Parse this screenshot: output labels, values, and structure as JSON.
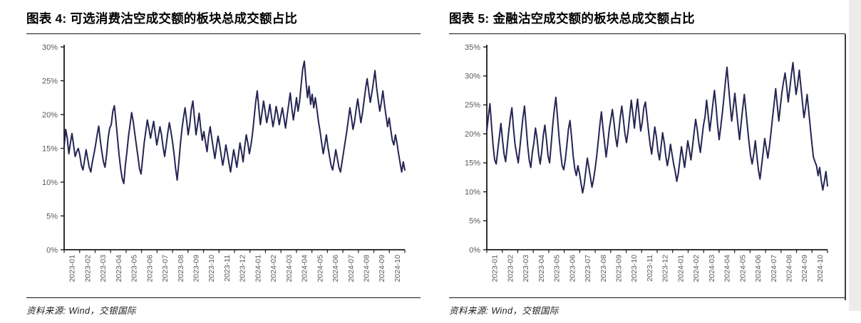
{
  "page": {
    "background": "#ffffff",
    "right_border_color": "#3d3d3d",
    "edge_strip_color": "#ececec"
  },
  "charts": [
    {
      "title": "图表 4: 可选消费沽空成交额的板块总成交额占比",
      "source": "资料来源: Wind，交银国际",
      "chart_data": {
        "type": "line",
        "title": "可选消费沽空成交额的板块总成交额占比",
        "xlabel": "",
        "ylabel": "",
        "grid": false,
        "legend": "none",
        "ylim": [
          0,
          30
        ],
        "y_tick_labels": [
          "0%",
          "5%",
          "10%",
          "15%",
          "20%",
          "25%",
          "30%"
        ],
        "x_labels": [
          "2023-01",
          "2023-02",
          "2023-03",
          "2023-04",
          "2023-05",
          "2023-06",
          "2023-07",
          "2023-08",
          "2023-09",
          "2023-10",
          "2023-11",
          "2023-12",
          "2024-01",
          "2024-02",
          "2024-03",
          "2024-04",
          "2024-05",
          "2024-06",
          "2024-07",
          "2024-08",
          "2024-09",
          "2024-10"
        ],
        "line_color": "#262554",
        "axis_color": "#1a1a1a",
        "tick_label_color": "#595959",
        "values": [
          15.2,
          17.8,
          16.5,
          14.2,
          15.8,
          17.2,
          15.5,
          13.8,
          14.5,
          15.0,
          14.0,
          12.5,
          11.8,
          13.2,
          14.8,
          13.5,
          12.2,
          11.5,
          13.0,
          14.2,
          15.5,
          17.0,
          18.3,
          16.2,
          14.5,
          13.0,
          12.2,
          14.0,
          16.5,
          18.0,
          18.5,
          20.5,
          21.3,
          19.0,
          16.5,
          14.0,
          12.0,
          10.5,
          9.8,
          12.5,
          14.5,
          16.8,
          18.5,
          20.3,
          19.0,
          17.2,
          15.5,
          13.8,
          12.0,
          11.2,
          13.5,
          15.8,
          17.5,
          19.2,
          18.0,
          16.5,
          17.8,
          19.0,
          17.2,
          15.5,
          16.8,
          18.2,
          17.0,
          15.2,
          13.8,
          15.5,
          17.3,
          18.8,
          17.5,
          16.0,
          14.2,
          12.0,
          10.3,
          12.8,
          15.5,
          17.8,
          19.5,
          21.0,
          19.2,
          17.0,
          18.5,
          20.8,
          22.0,
          19.5,
          17.0,
          18.5,
          20.2,
          18.0,
          16.2,
          17.5,
          16.0,
          14.5,
          16.8,
          18.2,
          16.5,
          15.0,
          13.5,
          15.2,
          16.8,
          15.5,
          14.0,
          12.5,
          13.8,
          15.5,
          14.2,
          12.8,
          11.5,
          13.2,
          14.8,
          13.5,
          12.2,
          14.0,
          15.8,
          14.5,
          13.0,
          15.2,
          17.0,
          15.8,
          14.2,
          15.5,
          17.2,
          19.5,
          21.8,
          23.5,
          21.0,
          18.5,
          20.2,
          22.0,
          20.5,
          18.8,
          20.0,
          21.5,
          19.8,
          18.2,
          19.5,
          21.2,
          20.0,
          18.5,
          19.8,
          21.0,
          19.5,
          18.0,
          19.8,
          21.5,
          23.2,
          21.0,
          19.2,
          20.8,
          22.5,
          20.5,
          22.0,
          24.5,
          26.8,
          27.9,
          25.0,
          22.5,
          24.2,
          21.5,
          23.0,
          21.0,
          22.5,
          20.8,
          19.0,
          17.5,
          15.8,
          14.2,
          15.5,
          17.0,
          15.2,
          13.8,
          12.5,
          11.8,
          13.2,
          14.8,
          13.5,
          12.2,
          11.5,
          13.0,
          14.5,
          16.0,
          17.5,
          19.2,
          21.0,
          19.5,
          17.8,
          19.0,
          20.8,
          22.3,
          20.5,
          18.8,
          20.2,
          22.0,
          23.8,
          25.3,
          23.5,
          21.8,
          23.2,
          24.8,
          26.5,
          24.0,
          22.2,
          20.5,
          21.8,
          23.5,
          21.5,
          19.8,
          18.2,
          19.5,
          17.8,
          16.2,
          15.5,
          17.0,
          15.8,
          14.2,
          12.8,
          11.5,
          13.0,
          11.8
        ]
      }
    },
    {
      "title": "图表 5: 金融沽空成交额的板块总成交额占比",
      "source": "资料来源: Wind，交银国际",
      "chart_data": {
        "type": "line",
        "title": "金融沽空成交额的板块总成交额占比",
        "xlabel": "",
        "ylabel": "",
        "grid": false,
        "legend": "none",
        "ylim": [
          0,
          35
        ],
        "y_tick_labels": [
          "0%",
          "5%",
          "10%",
          "15%",
          "20%",
          "25%",
          "30%",
          "35%"
        ],
        "x_labels": [
          "2023-01",
          "2023-02",
          "2023-03",
          "2023-04",
          "2023-05",
          "2023-06",
          "2023-07",
          "2023-08",
          "2023-09",
          "2023-10",
          "2023-11",
          "2023-12",
          "2024-01",
          "2024-02",
          "2024-03",
          "2024-04",
          "2024-05",
          "2024-06",
          "2024-07",
          "2024-08",
          "2024-09",
          "2024-10"
        ],
        "line_color": "#262554",
        "axis_color": "#1a1a1a",
        "tick_label_color": "#595959",
        "values": [
          20.5,
          23.0,
          25.2,
          21.5,
          18.0,
          15.5,
          14.8,
          17.2,
          19.5,
          21.8,
          19.0,
          16.5,
          15.2,
          17.8,
          20.5,
          22.8,
          24.5,
          21.0,
          18.2,
          16.5,
          15.0,
          17.5,
          20.2,
          22.8,
          24.8,
          21.5,
          18.0,
          15.5,
          14.2,
          16.8,
          18.5,
          21.0,
          19.2,
          16.5,
          14.8,
          17.0,
          19.8,
          21.5,
          19.0,
          16.2,
          15.0,
          18.2,
          21.5,
          24.2,
          26.3,
          23.0,
          19.5,
          16.8,
          14.5,
          13.8,
          15.5,
          18.0,
          20.8,
          22.3,
          19.5,
          16.2,
          14.0,
          12.8,
          14.5,
          13.2,
          11.5,
          9.8,
          11.2,
          13.5,
          15.8,
          14.2,
          12.5,
          10.8,
          12.2,
          14.0,
          16.2,
          18.8,
          21.5,
          23.8,
          21.0,
          18.5,
          16.0,
          18.2,
          20.8,
          22.5,
          24.2,
          22.0,
          19.5,
          17.8,
          20.2,
          22.8,
          24.8,
          22.5,
          20.0,
          18.5,
          20.5,
          23.2,
          25.8,
          23.5,
          21.0,
          23.8,
          26.0,
          23.2,
          20.5,
          22.0,
          24.5,
          25.5,
          23.0,
          20.5,
          18.2,
          16.5,
          18.8,
          21.2,
          19.5,
          17.0,
          15.5,
          17.8,
          20.2,
          18.5,
          16.2,
          14.5,
          16.0,
          18.2,
          16.5,
          14.8,
          13.5,
          11.8,
          13.2,
          15.5,
          17.8,
          16.0,
          14.2,
          16.5,
          18.8,
          17.2,
          15.5,
          17.8,
          20.2,
          22.5,
          20.8,
          18.5,
          16.8,
          19.2,
          21.5,
          23.0,
          25.8,
          23.2,
          20.5,
          22.8,
          25.2,
          27.5,
          24.8,
          21.5,
          19.0,
          21.2,
          23.5,
          26.2,
          29.0,
          31.5,
          28.2,
          25.0,
          22.2,
          24.5,
          27.0,
          24.2,
          21.5,
          19.0,
          21.8,
          24.5,
          26.8,
          24.0,
          21.2,
          18.5,
          16.2,
          14.8,
          16.5,
          18.8,
          16.2,
          13.8,
          12.2,
          14.5,
          16.8,
          19.2,
          17.5,
          15.8,
          17.8,
          20.2,
          22.8,
          25.2,
          27.8,
          25.0,
          22.2,
          24.8,
          27.2,
          29.0,
          30.5,
          28.2,
          25.5,
          27.8,
          30.2,
          32.3,
          29.5,
          26.8,
          28.5,
          31.0,
          28.2,
          25.5,
          22.8,
          24.5,
          26.8,
          24.0,
          21.2,
          18.5,
          16.0,
          15.2,
          14.5,
          12.8,
          14.2,
          12.0,
          10.3,
          11.8,
          13.5,
          11.0
        ]
      }
    }
  ]
}
